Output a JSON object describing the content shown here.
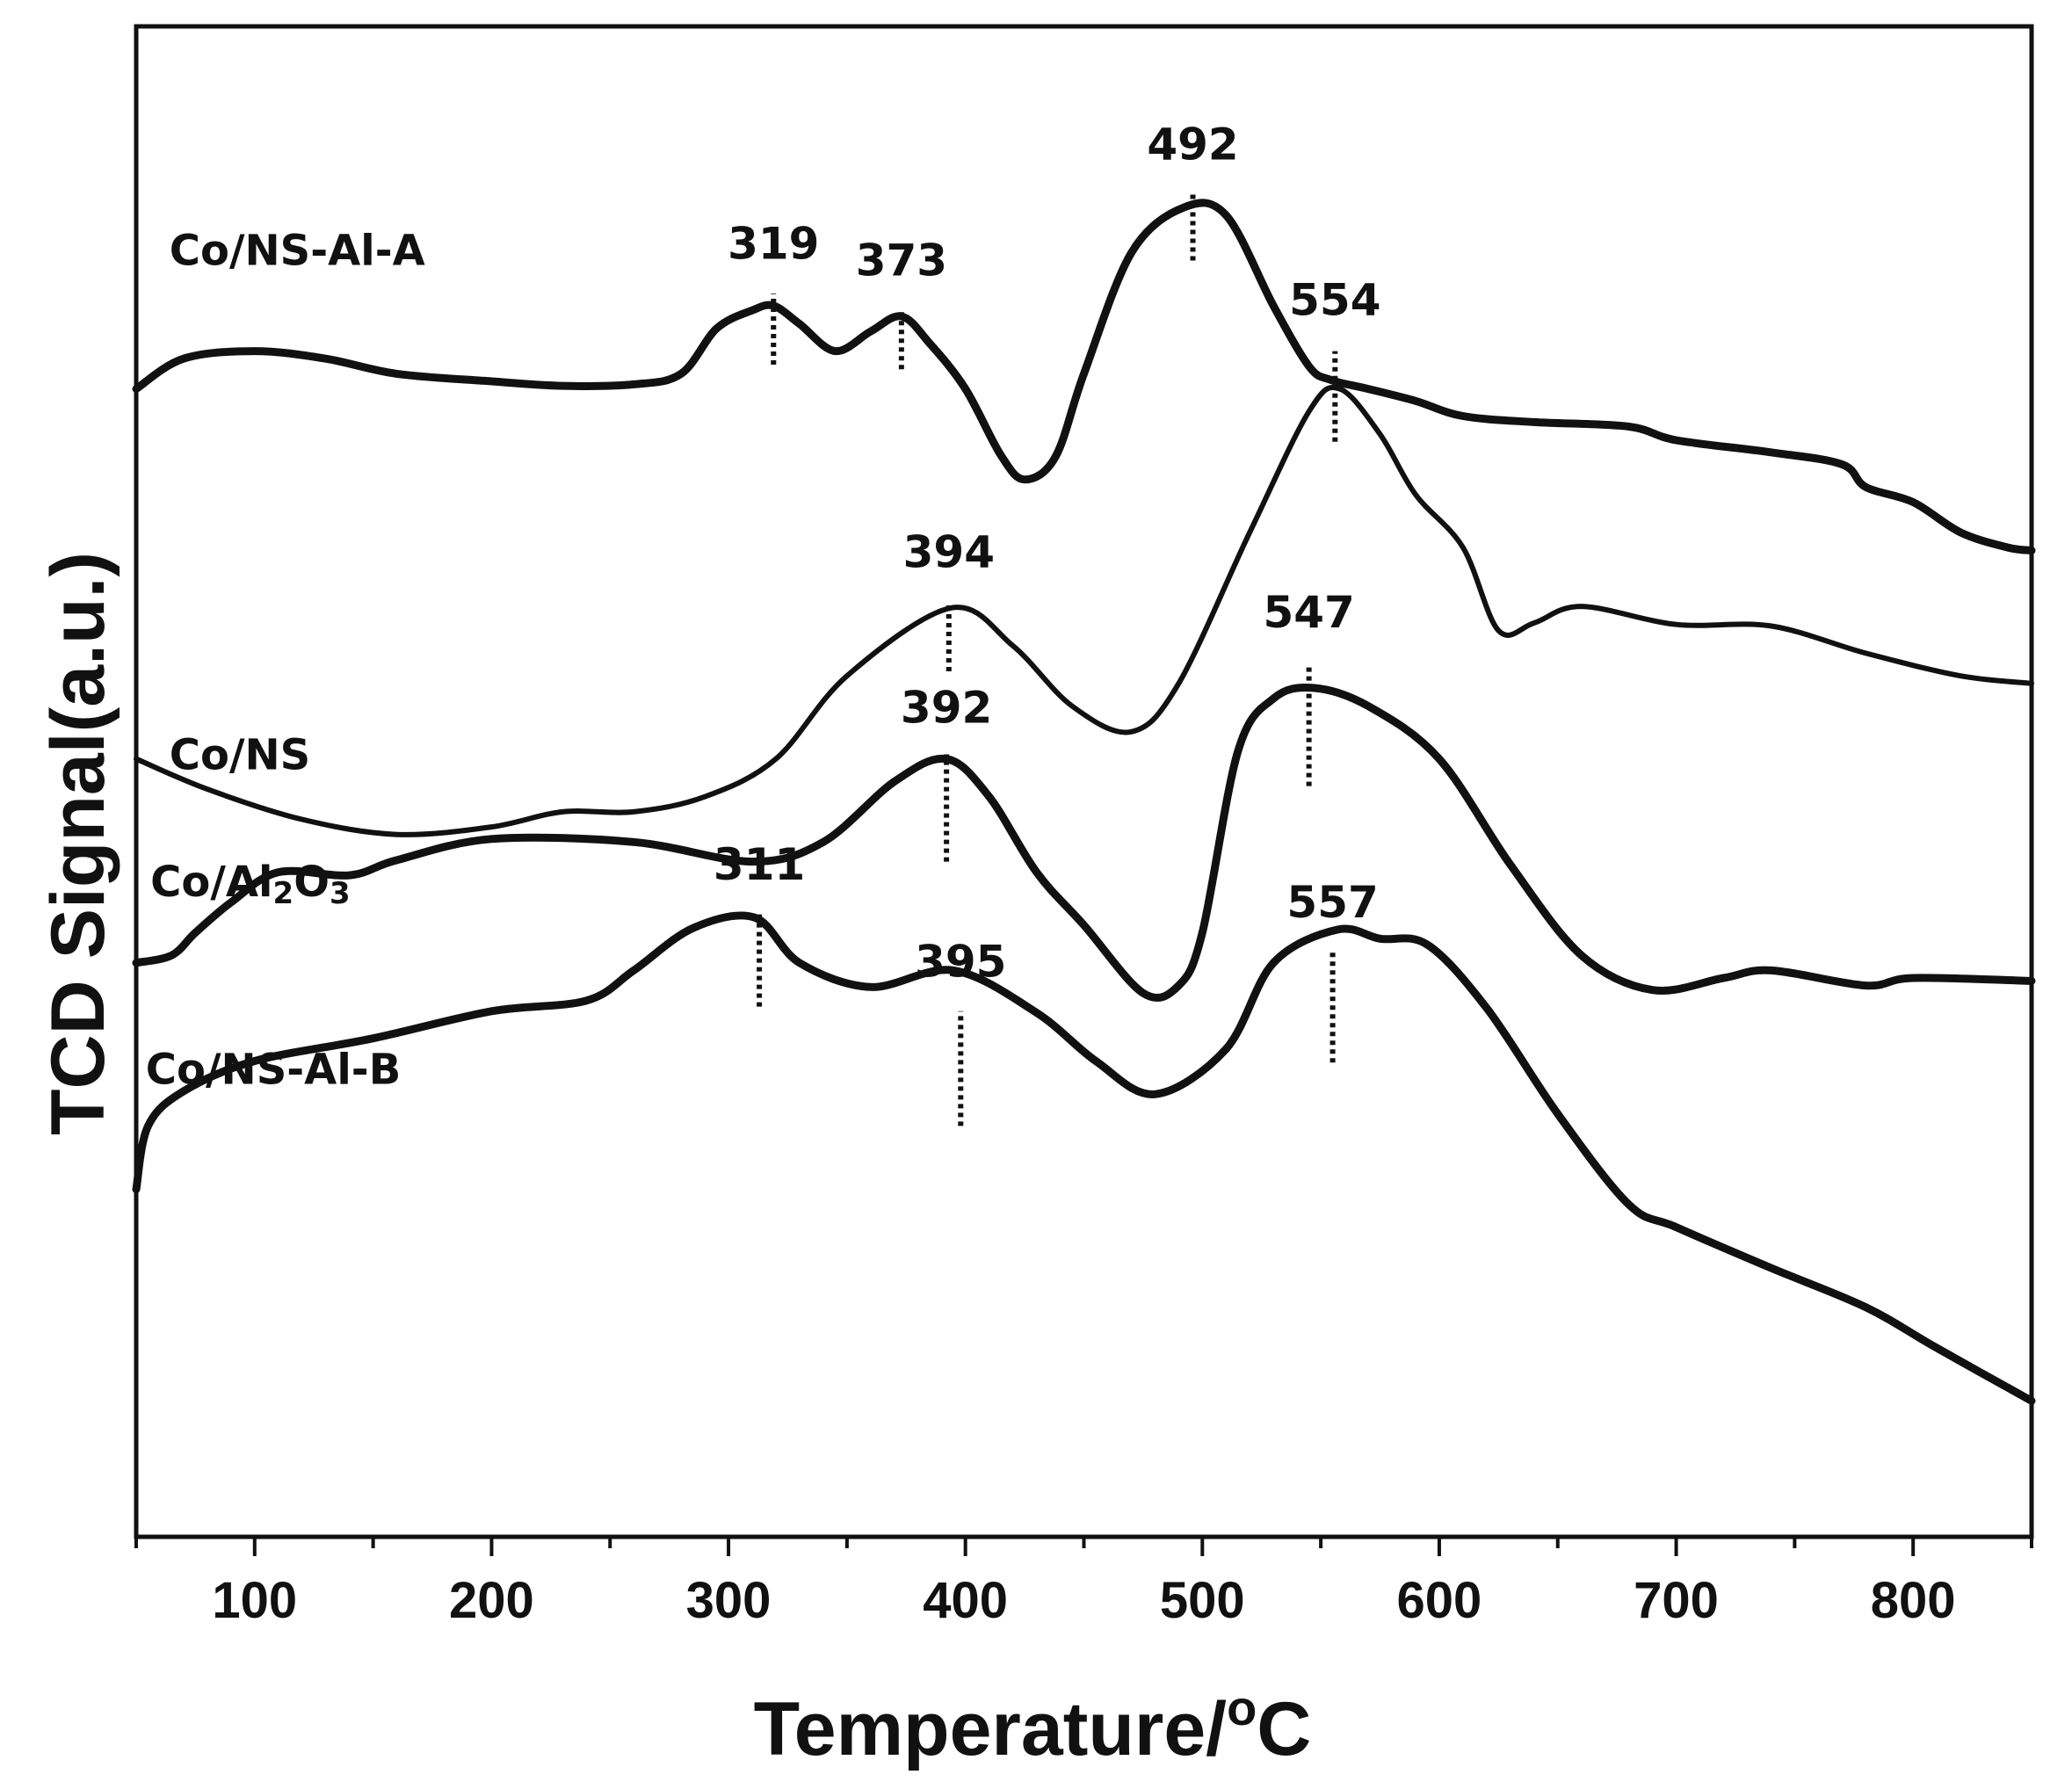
{
  "chart_data": {
    "type": "line",
    "title": "",
    "xlabel": "Temperature/",
    "xlabel_superscript": "o",
    "xlabel_unit": "C",
    "ylabel": "TCD Signal(a.u.)",
    "xlim": [
      50,
      850
    ],
    "ylim": [
      0,
      100
    ],
    "x_ticks": [
      100,
      200,
      300,
      400,
      500,
      600,
      700,
      800
    ],
    "x_minor_ticks": [
      50,
      150,
      250,
      350,
      450,
      550,
      650,
      750,
      850
    ],
    "series": [
      {
        "name": "Co/NS-Al-A",
        "label_parts": [
          "Co/NS-Al-A"
        ],
        "line_weight": "thick",
        "points": [
          [
            50,
            76
          ],
          [
            70,
            78
          ],
          [
            100,
            78.5
          ],
          [
            130,
            78
          ],
          [
            160,
            77
          ],
          [
            200,
            76.5
          ],
          [
            230,
            76.2
          ],
          [
            260,
            76.3
          ],
          [
            280,
            77
          ],
          [
            295,
            80
          ],
          [
            310,
            81.2
          ],
          [
            319,
            81.5
          ],
          [
            330,
            80.3
          ],
          [
            345,
            78.5
          ],
          [
            360,
            79.8
          ],
          [
            373,
            80.8
          ],
          [
            385,
            79
          ],
          [
            400,
            76
          ],
          [
            415,
            71.6
          ],
          [
            425,
            70
          ],
          [
            438,
            71.5
          ],
          [
            450,
            77
          ],
          [
            470,
            85
          ],
          [
            492,
            88
          ],
          [
            510,
            87.5
          ],
          [
            530,
            81.5
          ],
          [
            545,
            77.5
          ],
          [
            554,
            76.6
          ],
          [
            570,
            76
          ],
          [
            590,
            75.2
          ],
          [
            610,
            74.2
          ],
          [
            640,
            73.8
          ],
          [
            680,
            73.5
          ],
          [
            700,
            72.6
          ],
          [
            740,
            71.8
          ],
          [
            770,
            71
          ],
          [
            780,
            69.5
          ],
          [
            800,
            68.5
          ],
          [
            820,
            66.5
          ],
          [
            840,
            65.5
          ],
          [
            850,
            65.3
          ]
        ]
      },
      {
        "name": "Co/NS",
        "label_parts": [
          "Co/NS"
        ],
        "line_weight": "mixed",
        "points": [
          [
            50,
            51.5
          ],
          [
            80,
            49.5
          ],
          [
            120,
            47.5
          ],
          [
            160,
            46.5
          ],
          [
            200,
            47
          ],
          [
            230,
            48
          ],
          [
            260,
            48
          ],
          [
            290,
            49
          ],
          [
            320,
            51.5
          ],
          [
            350,
            57
          ],
          [
            394,
            61.5
          ],
          [
            420,
            59
          ],
          [
            445,
            55
          ],
          [
            470,
            53.3
          ],
          [
            490,
            56.5
          ],
          [
            520,
            66.5
          ],
          [
            545,
            74.5
          ],
          [
            558,
            76
          ],
          [
            575,
            73
          ],
          [
            590,
            69
          ],
          [
            610,
            65.5
          ],
          [
            625,
            60
          ],
          [
            640,
            60.5
          ],
          [
            660,
            61.6
          ],
          [
            700,
            60.4
          ],
          [
            740,
            60.3
          ],
          [
            780,
            58.5
          ],
          [
            820,
            57
          ],
          [
            850,
            56.5
          ]
        ]
      },
      {
        "name": "Co/Al2O3",
        "label_parts": [
          "Co/Al",
          "2",
          "O",
          "3"
        ],
        "line_weight": "thick",
        "points": [
          [
            50,
            38
          ],
          [
            65,
            38.5
          ],
          [
            75,
            40
          ],
          [
            90,
            42
          ],
          [
            110,
            44
          ],
          [
            140,
            43.8
          ],
          [
            160,
            44.8
          ],
          [
            200,
            46.2
          ],
          [
            260,
            46
          ],
          [
            310,
            44.7
          ],
          [
            340,
            46
          ],
          [
            370,
            50
          ],
          [
            392,
            51.5
          ],
          [
            410,
            49
          ],
          [
            430,
            44
          ],
          [
            450,
            40.5
          ],
          [
            475,
            36
          ],
          [
            490,
            36.5
          ],
          [
            500,
            40
          ],
          [
            515,
            52
          ],
          [
            530,
            55.5
          ],
          [
            547,
            56.2
          ],
          [
            570,
            55
          ],
          [
            600,
            51.5
          ],
          [
            630,
            44.5
          ],
          [
            660,
            38.5
          ],
          [
            690,
            36.2
          ],
          [
            720,
            37
          ],
          [
            740,
            37.5
          ],
          [
            780,
            36.5
          ],
          [
            800,
            37
          ],
          [
            850,
            36.8
          ]
        ]
      },
      {
        "name": "Co/NS-Al-B",
        "label_parts": [
          "Co/NS-Al-B"
        ],
        "line_weight": "thick",
        "points": [
          [
            50,
            23
          ],
          [
            55,
            27.2
          ],
          [
            70,
            29.5
          ],
          [
            100,
            31.5
          ],
          [
            150,
            33
          ],
          [
            200,
            34.8
          ],
          [
            240,
            35.5
          ],
          [
            260,
            37.5
          ],
          [
            285,
            40.3
          ],
          [
            311,
            41
          ],
          [
            330,
            38
          ],
          [
            360,
            36.4
          ],
          [
            395,
            37.5
          ],
          [
            430,
            34.7
          ],
          [
            455,
            31.5
          ],
          [
            480,
            29.3
          ],
          [
            510,
            32.3
          ],
          [
            530,
            38
          ],
          [
            557,
            40.2
          ],
          [
            575,
            39.6
          ],
          [
            595,
            39.2
          ],
          [
            620,
            35
          ],
          [
            650,
            28
          ],
          [
            680,
            22
          ],
          [
            700,
            20.5
          ],
          [
            740,
            17.8
          ],
          [
            780,
            15.2
          ],
          [
            810,
            12.5
          ],
          [
            850,
            9
          ]
        ]
      }
    ],
    "series_labels": [
      {
        "series": "Co/NS-Al-A",
        "x": 64,
        "y": 84.2
      },
      {
        "series": "Co/NS",
        "x": 64,
        "y": 50.8
      },
      {
        "series": "Co/Al2O3",
        "x": 56,
        "y": 42.4
      },
      {
        "series": "Co/NS-Al-B",
        "x": 54,
        "y": 30
      }
    ],
    "peak_annotations": [
      {
        "value": "319",
        "x": 319,
        "y_bottom": 77.6,
        "y_top": 82.3,
        "label_y": 84.6
      },
      {
        "value": "373",
        "x": 373,
        "y_bottom": 77.3,
        "y_top": 81.2,
        "label_y": 83.5
      },
      {
        "value": "492",
        "x": 496,
        "y_bottom": 84.5,
        "y_top": 89,
        "label_y": 91.2
      },
      {
        "value": "554",
        "x": 556,
        "y_bottom": 72.5,
        "y_top": 78.5,
        "label_y": 80.9
      },
      {
        "value": "394",
        "x": 393,
        "y_bottom": 57.3,
        "y_top": 61.8,
        "label_y": 64.2
      },
      {
        "value": "547",
        "x": 545,
        "y_bottom": 49.7,
        "y_top": 57.8,
        "label_y": 60.2
      },
      {
        "value": "392",
        "x": 392,
        "y_bottom": 44.7,
        "y_top": 51.8,
        "label_y": 53.9
      },
      {
        "value": "311",
        "x": 313,
        "y_bottom": 35.1,
        "y_top": 41.3,
        "label_y": 43.5
      },
      {
        "value": "395",
        "x": 398,
        "y_bottom": 27.2,
        "y_top": 34.8,
        "label_y": 37.1
      },
      {
        "value": "557",
        "x": 555,
        "y_bottom": 31.4,
        "y_top": 38.7,
        "label_y": 41.0
      }
    ]
  }
}
